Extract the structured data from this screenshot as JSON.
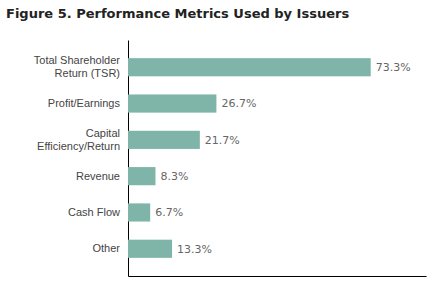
{
  "chart_data": {
    "type": "bar",
    "orientation": "horizontal",
    "title": "Figure 5. Performance Metrics Used by Issuers",
    "categories": [
      "Other",
      "Cash Flow",
      "Revenue",
      "Capital\nEfficiency/Return",
      "Profit/Earnings",
      "Total Shareholder\nReturn (TSR)"
    ],
    "values": [
      13.3,
      6.7,
      8.3,
      21.7,
      26.7,
      73.3
    ],
    "value_labels": [
      "13.3%",
      "6.7%",
      "8.3%",
      "21.7%",
      "26.7%",
      "73.3%"
    ],
    "color": "#7eb5a8",
    "xlim": [
      0,
      90
    ],
    "grid": false,
    "data_labels": true,
    "tick_labels": "y"
  }
}
